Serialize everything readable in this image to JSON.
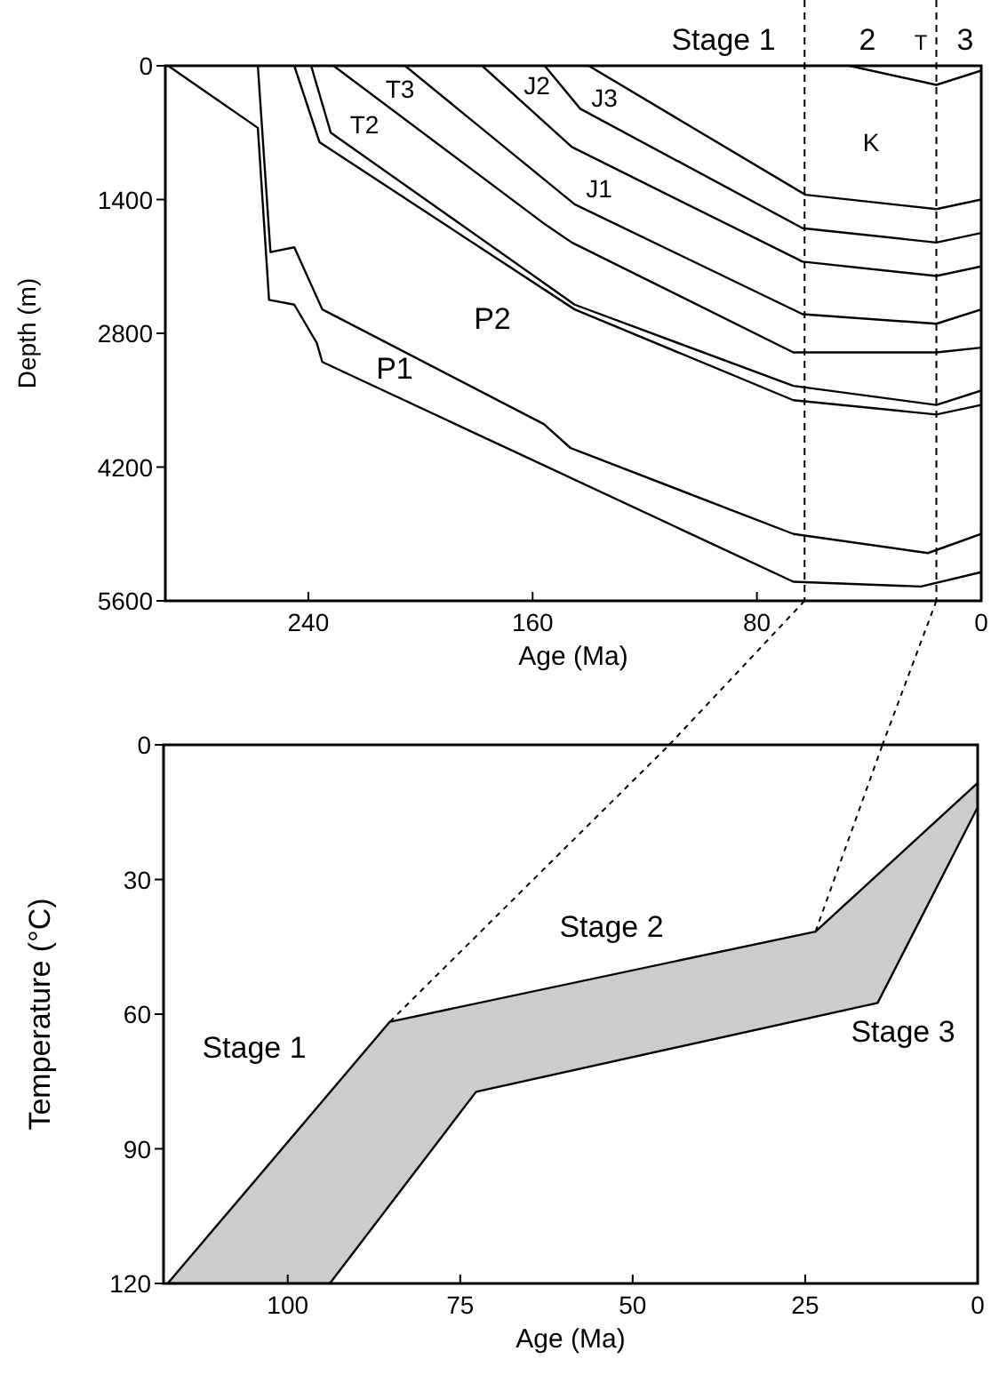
{
  "chart_data": [
    {
      "type": "line",
      "xlabel": "Age (Ma)",
      "ylabel": "Depth (m)",
      "xlim": [
        291,
        0
      ],
      "xticks": [
        240,
        160,
        80,
        0
      ],
      "ylim": [
        5600,
        0
      ],
      "yticks": [
        0,
        1400,
        2800,
        4200,
        5600
      ],
      "series": [
        {
          "color": "#000000",
          "x": [
            290,
            258,
            254,
            245,
            237,
            235,
            67,
            21.5,
            0
          ],
          "values": [
            0,
            650,
            2450,
            2500,
            2900,
            3100,
            5400,
            5450,
            5300
          ]
        },
        {
          "color": "#000000",
          "x": [
            258,
            253.5,
            245,
            235,
            156,
            146.5,
            67,
            19,
            0
          ],
          "values": [
            0,
            1950,
            1900,
            2550,
            3750,
            4000,
            4900,
            5100,
            4900
          ]
        },
        {
          "color": "#000000",
          "x": [
            245,
            236,
            145,
            67,
            16,
            0
          ],
          "values": [
            0,
            800,
            2550,
            3500,
            3650,
            3550
          ]
        },
        {
          "color": "#000000",
          "x": [
            239,
            232,
            145,
            67,
            16,
            0
          ],
          "values": [
            0,
            700,
            2500,
            3350,
            3550,
            3400
          ]
        },
        {
          "color": "#000000",
          "x": [
            231,
            156,
            146,
            67,
            16,
            0
          ],
          "values": [
            0,
            1650,
            1850,
            3000,
            3000,
            2950
          ]
        },
        {
          "color": "#000000",
          "x": [
            205.5,
            145,
            63.7,
            16,
            0
          ],
          "values": [
            0,
            1450,
            2600,
            2700,
            2550
          ]
        },
        {
          "color": "#000000",
          "x": [
            178,
            146,
            63.7,
            16,
            0
          ],
          "values": [
            0,
            850,
            2050,
            2200,
            2100
          ]
        },
        {
          "color": "#000000",
          "x": [
            155.7,
            143,
            63.7,
            16,
            0
          ],
          "values": [
            0,
            450,
            1700,
            1850,
            1750
          ]
        },
        {
          "color": "#000000",
          "x": [
            140,
            62.7,
            16,
            0
          ],
          "values": [
            0,
            1350,
            1500,
            1400
          ]
        },
        {
          "color": "#000000",
          "x": [
            47,
            16,
            0
          ],
          "values": [
            0,
            200,
            50
          ]
        }
      ],
      "ref_lines": [
        {
          "axis": "x",
          "value": 63,
          "line_style": "dashed",
          "color": "#000000"
        },
        {
          "axis": "x",
          "value": 16,
          "line_style": "dashed",
          "color": "#000000"
        }
      ],
      "annotations": [
        "Stage 1",
        "2",
        "T",
        "3",
        "T3",
        "T2",
        "J2",
        "J3",
        "J1",
        "K",
        "P2",
        "P1"
      ]
    },
    {
      "type": "area",
      "xlabel": "Age (Ma)",
      "ylabel": "Temperature (°C)",
      "xlim": [
        118,
        0
      ],
      "xticks": [
        100,
        75,
        50,
        25,
        0
      ],
      "ylim": [
        120,
        0
      ],
      "yticks": [
        0,
        30,
        60,
        90,
        120
      ],
      "series": [
        {
          "color": "#cccccc",
          "x": [
            117.4,
            85.2,
            23.5,
            0,
            0,
            14.5,
            72.7,
            93.9
          ],
          "values": [
            120,
            61.7,
            41.6,
            8.5,
            13.9,
            57.5,
            77.3,
            120
          ]
        },
        {
          "type": "line",
          "line_style": "dashed",
          "color": "#000000",
          "x": [
            85.2,
            44.7
          ],
          "values": [
            61.7,
            0
          ]
        },
        {
          "type": "line",
          "line_style": "dashed",
          "color": "#000000",
          "x": [
            23.5,
            13.8
          ],
          "values": [
            41.6,
            0
          ]
        }
      ],
      "annotations": [
        "Stage 1",
        "Stage 2",
        "Stage 3"
      ]
    }
  ]
}
